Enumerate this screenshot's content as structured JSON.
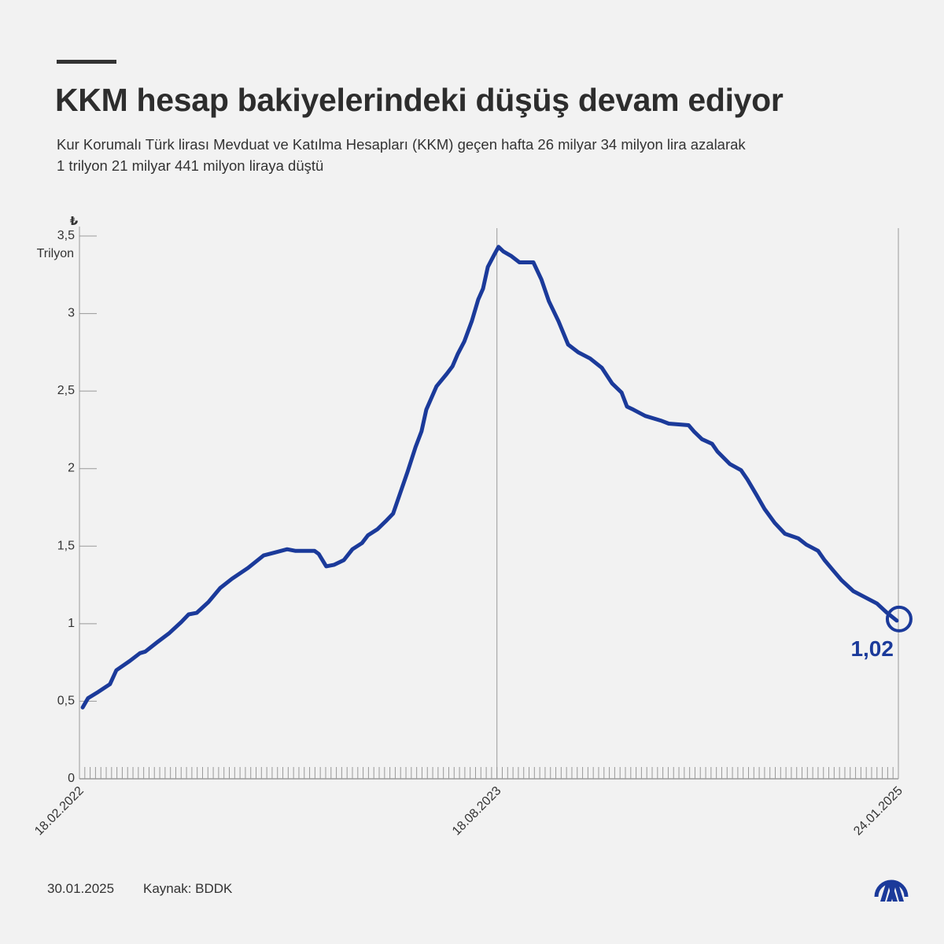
{
  "header": {
    "title": "KKM hesap bakiyelerindeki düşüş devam ediyor",
    "subtitle_line1": "Kur Korumalı Türk lirası Mevduat ve Katılma Hesapları (KKM) geçen hafta 26 milyar 34 milyon lira azalarak",
    "subtitle_line2": "1 trilyon 21 milyar 441 milyon liraya düştü"
  },
  "footer": {
    "date": "30.01.2025",
    "source": "Kaynak: BDDK",
    "logo_text": "AA"
  },
  "colors": {
    "line": "#1b3a9a",
    "axis": "#999999",
    "background": "#f2f2f2"
  },
  "chart_data": {
    "type": "line",
    "title": "KKM hesap bakiyelerindeki düşüş devam ediyor",
    "currency_symbol": "₺",
    "ylabel": "Trilyon",
    "ylim": [
      0,
      3.5
    ],
    "yticks": [
      0,
      0.5,
      1,
      1.5,
      2,
      2.5,
      3,
      3.5
    ],
    "ytick_labels": [
      "0",
      "0,5",
      "1",
      "1,5",
      "2",
      "2,5",
      "3",
      "3,5"
    ],
    "x_unit": "weeks since 18.02.2022",
    "xlim": [
      0,
      153
    ],
    "xtick_labels": [
      {
        "week": 0,
        "label": "18.02.2022"
      },
      {
        "week": 78,
        "label": "18.08.2023"
      },
      {
        "week": 153,
        "label": "24.01.2025"
      }
    ],
    "reference_line_week": 78,
    "end_label": "1,02",
    "series": [
      {
        "name": "KKM",
        "points": [
          [
            0.6,
            0.46
          ],
          [
            1.6,
            0.52
          ],
          [
            3.5,
            0.56
          ],
          [
            5.7,
            0.61
          ],
          [
            6.9,
            0.7
          ],
          [
            9.4,
            0.76
          ],
          [
            11.3,
            0.81
          ],
          [
            12.3,
            0.82
          ],
          [
            14.5,
            0.88
          ],
          [
            16.8,
            0.94
          ],
          [
            19,
            1.01
          ],
          [
            20.4,
            1.06
          ],
          [
            21.9,
            1.07
          ],
          [
            24.1,
            1.14
          ],
          [
            26.3,
            1.23
          ],
          [
            28.5,
            1.29
          ],
          [
            31.5,
            1.36
          ],
          [
            34.4,
            1.44
          ],
          [
            36.6,
            1.46
          ],
          [
            38.8,
            1.48
          ],
          [
            40.3,
            1.47
          ],
          [
            41.7,
            1.47
          ],
          [
            43.9,
            1.47
          ],
          [
            44.7,
            1.45
          ],
          [
            46.1,
            1.37
          ],
          [
            47.6,
            1.38
          ],
          [
            49.4,
            1.41
          ],
          [
            51,
            1.48
          ],
          [
            52.8,
            1.52
          ],
          [
            53.9,
            1.57
          ],
          [
            55.7,
            1.61
          ],
          [
            57.2,
            1.66
          ],
          [
            58.6,
            1.71
          ],
          [
            59.8,
            1.83
          ],
          [
            61.3,
            1.98
          ],
          [
            62.8,
            2.14
          ],
          [
            63.9,
            2.24
          ],
          [
            64.8,
            2.38
          ],
          [
            66.7,
            2.53
          ],
          [
            68.6,
            2.61
          ],
          [
            69.7,
            2.66
          ],
          [
            70.7,
            2.74
          ],
          [
            71.9,
            2.82
          ],
          [
            73.3,
            2.95
          ],
          [
            74.5,
            3.09
          ],
          [
            75.4,
            3.16
          ],
          [
            76.3,
            3.3
          ],
          [
            77.5,
            3.38
          ],
          [
            78.3,
            3.43
          ],
          [
            79.2,
            3.4
          ],
          [
            80.7,
            3.37
          ],
          [
            82.2,
            3.33
          ],
          [
            84.8,
            3.33
          ],
          [
            86.3,
            3.22
          ],
          [
            87.7,
            3.08
          ],
          [
            89.5,
            2.95
          ],
          [
            91.3,
            2.8
          ],
          [
            93.2,
            2.75
          ],
          [
            95.4,
            2.71
          ],
          [
            97.6,
            2.65
          ],
          [
            99.5,
            2.55
          ],
          [
            101.3,
            2.49
          ],
          [
            102.3,
            2.4
          ],
          [
            103.5,
            2.38
          ],
          [
            105.7,
            2.34
          ],
          [
            108.6,
            2.31
          ],
          [
            110.1,
            2.29
          ],
          [
            113.8,
            2.28
          ],
          [
            114.8,
            2.24
          ],
          [
            116.3,
            2.19
          ],
          [
            118.2,
            2.16
          ],
          [
            119.2,
            2.11
          ],
          [
            121.5,
            2.03
          ],
          [
            123.6,
            1.99
          ],
          [
            124.8,
            1.93
          ],
          [
            126.5,
            1.83
          ],
          [
            128,
            1.74
          ],
          [
            129.9,
            1.65
          ],
          [
            131.8,
            1.58
          ],
          [
            134.3,
            1.55
          ],
          [
            135.8,
            1.51
          ],
          [
            138,
            1.47
          ],
          [
            139.2,
            1.41
          ],
          [
            140.9,
            1.34
          ],
          [
            142.4,
            1.28
          ],
          [
            144.6,
            1.21
          ],
          [
            146.8,
            1.17
          ],
          [
            149,
            1.13
          ],
          [
            150.9,
            1.07
          ],
          [
            152.7,
            1.02
          ]
        ]
      }
    ]
  }
}
